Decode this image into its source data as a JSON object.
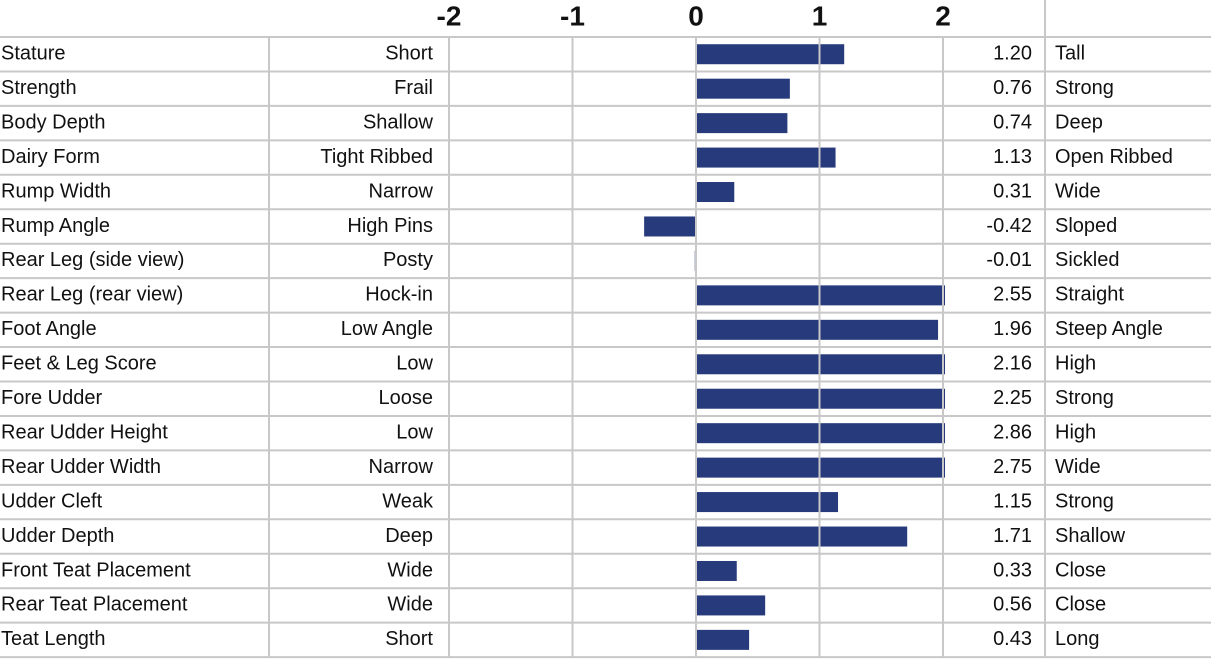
{
  "chart_data": {
    "type": "bar",
    "orientation": "horizontal",
    "categories": [
      "Stature",
      "Strength",
      "Body Depth",
      "Dairy Form",
      "Rump Width",
      "Rump Angle",
      "Rear Leg (side view)",
      "Rear Leg (rear view)",
      "Foot Angle",
      "Feet & Leg Score",
      "Fore Udder",
      "Rear Udder Height",
      "Rear Udder Width",
      "Udder Cleft",
      "Udder Depth",
      "Front Teat Placement",
      "Rear Teat Placement",
      "Teat Length"
    ],
    "low_labels": [
      "Short",
      "Frail",
      "Shallow",
      "Tight Ribbed",
      "Narrow",
      "High Pins",
      "Posty",
      "Hock-in",
      "Low Angle",
      "Low",
      "Loose",
      "Low",
      "Narrow",
      "Weak",
      "Deep",
      "Wide",
      "Wide",
      "Short"
    ],
    "high_labels": [
      "Tall",
      "Strong",
      "Deep",
      "Open Ribbed",
      "Wide",
      "Sloped",
      "Sickled",
      "Straight",
      "Steep Angle",
      "High",
      "Strong",
      "High",
      "Wide",
      "Strong",
      "Shallow",
      "Close",
      "Close",
      "Long"
    ],
    "values": [
      1.2,
      0.76,
      0.74,
      1.13,
      0.31,
      -0.42,
      -0.01,
      2.55,
      1.96,
      2.16,
      2.25,
      2.86,
      2.75,
      1.15,
      1.71,
      0.33,
      0.56,
      0.43
    ],
    "value_labels": [
      "1.20",
      "0.76",
      "0.74",
      "1.13",
      "0.31",
      "-0.42",
      "-0.01",
      "2.55",
      "1.96",
      "2.16",
      "2.25",
      "2.86",
      "2.75",
      "1.15",
      "1.71",
      "0.33",
      "0.56",
      "0.43"
    ],
    "color": "#273a7b",
    "xlim": [
      -2,
      2
    ],
    "xticks": [
      -2,
      -1,
      0,
      1,
      2
    ],
    "grid": true
  }
}
